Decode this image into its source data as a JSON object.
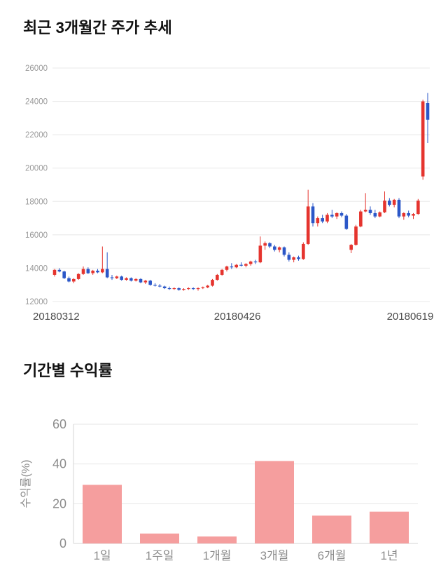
{
  "page": {
    "background": "#ffffff"
  },
  "price_section": {
    "title": "최근 3개월간 주가 추세"
  },
  "returns_section": {
    "title": "기간별 수익률"
  },
  "chart_data": [
    {
      "type": "candlestick",
      "title": "최근 3개월간 주가 추세",
      "ylim": [
        12000,
        26000
      ],
      "y_ticks": [
        12000,
        14000,
        16000,
        18000,
        20000,
        22000,
        24000,
        26000
      ],
      "x_ticks": [
        {
          "label": "20180312",
          "pos": 0.01
        },
        {
          "label": "20180426",
          "pos": 0.49
        },
        {
          "label": "20180619",
          "pos": 0.948
        }
      ],
      "up_color": "#e5342e",
      "down_color": "#2b57c8",
      "grid_color": "#e8e8e8",
      "grid": true,
      "candle_format": "ohlc",
      "candles": [
        [
          13600,
          13950,
          13500,
          13900
        ],
        [
          13900,
          14000,
          13750,
          13800
        ],
        [
          13800,
          13850,
          13350,
          13400
        ],
        [
          13400,
          13500,
          13150,
          13200
        ],
        [
          13200,
          13400,
          13100,
          13350
        ],
        [
          13350,
          13700,
          13300,
          13650
        ],
        [
          13650,
          14100,
          13600,
          13950
        ],
        [
          13950,
          14050,
          13650,
          13700
        ],
        [
          13700,
          13900,
          13600,
          13850
        ],
        [
          13850,
          13950,
          13700,
          13750
        ],
        [
          13750,
          15300,
          13700,
          13950
        ],
        [
          13950,
          14950,
          13400,
          13450
        ],
        [
          13450,
          13600,
          13300,
          13400
        ],
        [
          13400,
          13550,
          13350,
          13500
        ],
        [
          13500,
          13550,
          13250,
          13300
        ],
        [
          13300,
          13450,
          13250,
          13400
        ],
        [
          13400,
          13450,
          13200,
          13250
        ],
        [
          13250,
          13400,
          13200,
          13350
        ],
        [
          13350,
          13400,
          13100,
          13150
        ],
        [
          13150,
          13300,
          13050,
          13250
        ],
        [
          13250,
          13300,
          12950,
          13000
        ],
        [
          13000,
          13100,
          12900,
          12950
        ],
        [
          12950,
          13050,
          12850,
          12900
        ],
        [
          12900,
          12950,
          12750,
          12800
        ],
        [
          12800,
          12900,
          12700,
          12750
        ],
        [
          12750,
          12850,
          12700,
          12800
        ],
        [
          12800,
          12850,
          12650,
          12700
        ],
        [
          12700,
          12800,
          12650,
          12750
        ],
        [
          12750,
          12850,
          12700,
          12800
        ],
        [
          12800,
          12850,
          12700,
          12750
        ],
        [
          12750,
          12850,
          12650,
          12800
        ],
        [
          12800,
          12900,
          12750,
          12850
        ],
        [
          12850,
          13000,
          12800,
          12950
        ],
        [
          12950,
          13350,
          12900,
          13300
        ],
        [
          13300,
          13650,
          13250,
          13600
        ],
        [
          13600,
          13950,
          13550,
          13900
        ],
        [
          13900,
          14150,
          13800,
          14100
        ],
        [
          14100,
          14300,
          13950,
          14050
        ],
        [
          14050,
          14250,
          14000,
          14200
        ],
        [
          14200,
          14350,
          14100,
          14150
        ],
        [
          14150,
          14300,
          14050,
          14250
        ],
        [
          14250,
          14450,
          14150,
          14400
        ],
        [
          14400,
          14500,
          14250,
          14350
        ],
        [
          14350,
          15900,
          14300,
          15350
        ],
        [
          15350,
          15600,
          15100,
          15500
        ],
        [
          15500,
          15550,
          15200,
          15300
        ],
        [
          15300,
          15400,
          15000,
          15100
        ],
        [
          15100,
          15300,
          14950,
          15250
        ],
        [
          15250,
          15300,
          14700,
          14800
        ],
        [
          14800,
          14950,
          14400,
          14500
        ],
        [
          14500,
          14700,
          14350,
          14650
        ],
        [
          14650,
          14750,
          14450,
          14550
        ],
        [
          14550,
          15550,
          14500,
          15450
        ],
        [
          15450,
          18700,
          15400,
          17700
        ],
        [
          17700,
          17900,
          16500,
          16700
        ],
        [
          16700,
          17100,
          16500,
          17000
        ],
        [
          17000,
          17200,
          16700,
          16800
        ],
        [
          16800,
          17300,
          16700,
          17200
        ],
        [
          17200,
          17500,
          17000,
          17100
        ],
        [
          17100,
          17350,
          16950,
          17300
        ],
        [
          17300,
          17400,
          17050,
          17150
        ],
        [
          17150,
          17250,
          16300,
          16350
        ],
        [
          15100,
          15450,
          14900,
          15400
        ],
        [
          15400,
          16600,
          15350,
          16500
        ],
        [
          16500,
          17500,
          16450,
          17400
        ],
        [
          17400,
          18500,
          17350,
          17500
        ],
        [
          17500,
          17700,
          17200,
          17300
        ],
        [
          17300,
          17500,
          17000,
          17100
        ],
        [
          17100,
          17400,
          17050,
          17350
        ],
        [
          17350,
          18600,
          17300,
          18050
        ],
        [
          18050,
          18200,
          17700,
          17800
        ],
        [
          17800,
          18150,
          17650,
          18100
        ],
        [
          18100,
          18200,
          17000,
          17100
        ],
        [
          17100,
          17350,
          16900,
          17300
        ],
        [
          17300,
          17450,
          17050,
          17150
        ],
        [
          17150,
          17300,
          16950,
          17250
        ],
        [
          17250,
          18150,
          17200,
          18050
        ],
        [
          19500,
          24100,
          19300,
          24000
        ],
        [
          23900,
          24500,
          21500,
          22900
        ]
      ]
    },
    {
      "type": "bar",
      "title": "기간별 수익률",
      "categories": [
        "1일",
        "1주일",
        "1개월",
        "3개월",
        "6개월",
        "1년"
      ],
      "values": [
        29.5,
        5,
        3.5,
        41.5,
        14,
        16
      ],
      "xlabel": "",
      "ylabel": "수익률(%)",
      "ylim": [
        0,
        60
      ],
      "y_ticks": [
        0,
        20,
        40,
        60
      ],
      "grid": true,
      "legend": false,
      "bar_color": "#f59e9e",
      "grid_color": "#e6e6e6",
      "axis_color": "#d4d4d4"
    }
  ]
}
